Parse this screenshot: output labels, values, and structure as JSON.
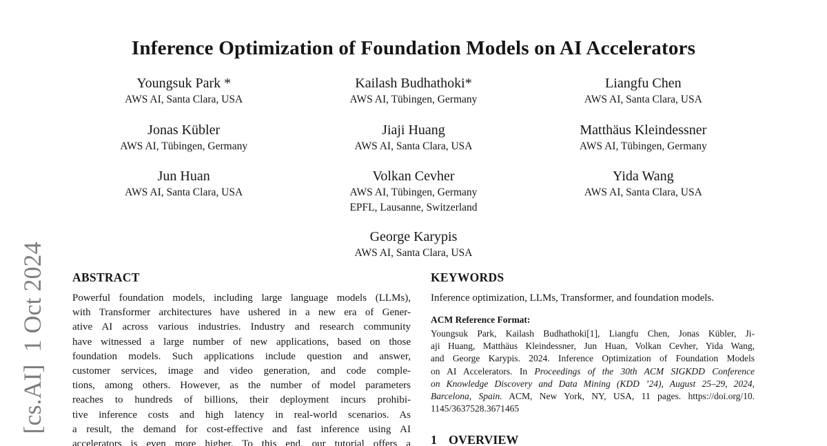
{
  "arxiv": {
    "stamp": "[cs.AI]  1 Oct 2024"
  },
  "paper": {
    "title": "Inference Optimization of Foundation Models on AI Accelerators"
  },
  "authors": [
    {
      "name": "Youngsuk Park *",
      "affiliations": [
        "AWS AI, Santa Clara, USA"
      ]
    },
    {
      "name": "Kailash Budhathoki*",
      "affiliations": [
        "AWS AI, Tübingen, Germany"
      ]
    },
    {
      "name": "Liangfu Chen",
      "affiliations": [
        "AWS AI, Santa Clara, USA"
      ]
    },
    {
      "name": "Jonas Kübler",
      "affiliations": [
        "AWS AI, Tübingen, Germany"
      ]
    },
    {
      "name": "Jiaji Huang",
      "affiliations": [
        "AWS AI, Santa Clara, USA"
      ]
    },
    {
      "name": "Matthäus Kleindessner",
      "affiliations": [
        "AWS AI, Tübingen, Germany"
      ]
    },
    {
      "name": "Jun Huan",
      "affiliations": [
        "AWS AI, Santa Clara, USA"
      ]
    },
    {
      "name": "Volkan Cevher",
      "affiliations": [
        "AWS AI, Tübingen, Germany",
        "EPFL, Lausanne, Switzerland"
      ]
    },
    {
      "name": "Yida Wang",
      "affiliations": [
        "AWS AI, Santa Clara, USA"
      ]
    },
    {
      "name": "George Karypis",
      "affiliations": [
        "AWS AI, Santa Clara, USA"
      ]
    }
  ],
  "abstract": {
    "heading": "ABSTRACT",
    "lines": [
      "Powerful foundation models, including large language models (LLMs),",
      "with Transformer architectures have ushered in a new era of Gener-",
      "ative AI across various industries. Industry and research community",
      "have witnessed a large number of new applications, based on those",
      "foundation models. Such applications include question and answer,",
      "customer services, image and video generation, and code comple-",
      "tions, among others. However, as the number of model parameters",
      "reaches to hundreds of billions, their deployment incurs prohibi-",
      "tive inference costs and high latency in real-world scenarios. As",
      "a result, the demand for cost-effective and fast inference using AI",
      "accelerators is even more higher. To this end, our tutorial offers a"
    ]
  },
  "keywords": {
    "heading": "KEYWORDS",
    "text": "Inference optimization, LLMs, Transformer, and foundation models."
  },
  "acm_reference": {
    "heading": "ACM Reference Format:",
    "line1": "Youngsuk Park, Kailash Budhathoki[1], Liangfu Chen, Jonas Kübler, Ji-",
    "line2": "aji Huang, Matthäus Kleindessner, Jun Huan, Volkan Cevher, Yida Wang,",
    "line3": "and George Karypis. 2024. Inference Optimization of Foundation Models",
    "line4_normal": "on AI Accelerators. In ",
    "line4_italic": "Proceedings of the 30th ACM SIGKDD Conference",
    "line5_italic": "on Knowledge Discovery and Data Mining (KDD ’24), August 25–29, 2024,",
    "line6_italic": "Barcelona, Spain.",
    "line6_normal": " ACM, New York, NY, USA, 11 pages. https://doi.org/10.",
    "line7": "1145/3637528.3671465"
  },
  "section1": {
    "number": "1",
    "title": "OVERVIEW"
  }
}
